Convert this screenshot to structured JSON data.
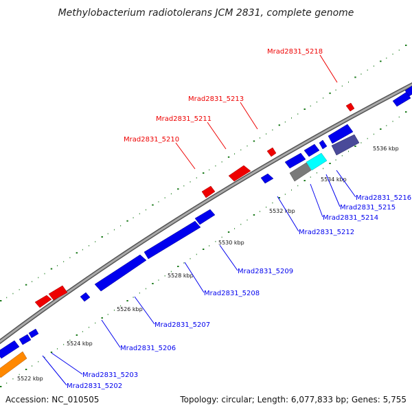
{
  "title": "Methylobacterium radiotolerans JCM 2831, complete genome",
  "footer": {
    "accession": "Accession: NC_010505",
    "summary": "Topology: circular; Length: 6,077,833 bp; Genes: 5,755"
  },
  "colors": {
    "forward": "#ee0000",
    "reverse": "#0000ee",
    "backbone": "#888888",
    "tick": "#1a7a1a",
    "orange": "#ff8800",
    "cyan": "#00ffff",
    "gray": "#7a7a7a",
    "slate": "#4a4a99"
  },
  "ticks": [
    "5522 kbp",
    "5524 kbp",
    "5526 kbp",
    "5528 kbp",
    "5530 kbp",
    "5532 kbp",
    "5534 kbp",
    "5536 kbp"
  ],
  "forward_labels": [
    "Mrad2831_5210",
    "Mrad2831_5211",
    "Mrad2831_5213",
    "Mrad2831_5218"
  ],
  "reverse_labels": [
    "Mrad2831_5202",
    "Mrad2831_5203",
    "Mrad2831_5206",
    "Mrad2831_5207",
    "Mrad2831_5208",
    "Mrad2831_5209",
    "Mrad2831_5212",
    "Mrad2831_5214",
    "Mrad2831_5215",
    "Mrad2831_5216"
  ]
}
